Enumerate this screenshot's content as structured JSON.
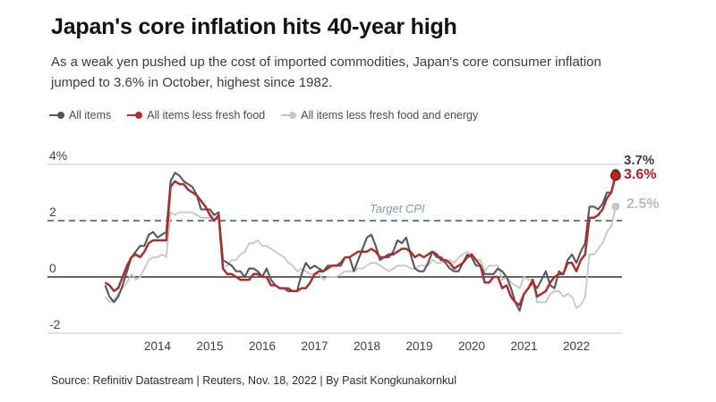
{
  "header": {
    "title": "Japan's core inflation hits 40-year high",
    "subtitle": "As a weak yen pushed up the cost of imported commodities, Japan's core consumer inflation jumped to 3.6% in October, highest since 1982."
  },
  "legend": {
    "items": [
      {
        "label": "All items",
        "color": "#55575c"
      },
      {
        "label": "All items less fresh food",
        "color": "#a8302e"
      },
      {
        "label": "All items less fresh food and energy",
        "color": "#c5c6c8"
      }
    ]
  },
  "chart_data": {
    "type": "line",
    "title": "Japan's core inflation hits 40-year high",
    "xlabel": "",
    "ylabel": "percent",
    "x_start": "2013-01",
    "x_end": "2022-10",
    "x_ticks": [
      2014,
      2015,
      2016,
      2017,
      2018,
      2019,
      2020,
      2021,
      2022
    ],
    "y_ticks": [
      {
        "label": "4%",
        "value": 4
      },
      {
        "label": "2",
        "value": 2
      },
      {
        "label": "0",
        "value": 0
      },
      {
        "label": "-2",
        "value": -2
      }
    ],
    "ylim": [
      -2.8,
      4.4
    ],
    "grid": "horizontal",
    "legend_position": "top",
    "target_line": {
      "label": "Target CPI",
      "value": 2,
      "color": "#5d828e"
    },
    "zero_line_color": "#2e3136",
    "grid_color": "#d9d9d9",
    "series": [
      {
        "name": "All items",
        "color": "#55575c",
        "end_label": "3.7%",
        "end_label_color": "#3b3e43",
        "end_value": 3.7,
        "values": [
          -0.3,
          -0.7,
          -0.9,
          -0.7,
          -0.3,
          0.2,
          0.7,
          0.9,
          1.1,
          1.1,
          1.5,
          1.6,
          1.4,
          1.5,
          1.6,
          3.4,
          3.7,
          3.6,
          3.4,
          3.3,
          3.2,
          2.9,
          2.4,
          2.4,
          2.4,
          2.2,
          2.3,
          0.6,
          0.5,
          0.4,
          0.2,
          0.2,
          0.0,
          0.3,
          0.3,
          0.2,
          0.0,
          0.3,
          -0.1,
          -0.3,
          -0.4,
          -0.4,
          -0.4,
          -0.5,
          -0.5,
          0.1,
          0.5,
          0.3,
          0.4,
          0.3,
          0.2,
          0.4,
          0.4,
          0.4,
          0.4,
          0.7,
          0.7,
          0.2,
          0.6,
          1.0,
          1.4,
          1.5,
          1.1,
          0.6,
          0.7,
          0.7,
          0.9,
          1.3,
          1.2,
          1.4,
          0.8,
          0.3,
          0.2,
          0.2,
          0.5,
          0.9,
          0.7,
          0.7,
          0.5,
          0.3,
          0.2,
          0.2,
          0.5,
          0.8,
          0.7,
          0.4,
          0.4,
          0.1,
          0.1,
          0.1,
          0.3,
          0.2,
          0.0,
          -0.4,
          -0.9,
          -1.2,
          -0.6,
          -0.4,
          -0.2,
          -0.4,
          -0.1,
          0.2,
          -0.3,
          -0.4,
          0.2,
          0.1,
          0.6,
          0.8,
          0.5,
          0.9,
          1.2,
          2.5,
          2.5,
          2.4,
          2.6,
          3.0,
          3.0,
          3.7
        ]
      },
      {
        "name": "All items less fresh food",
        "color": "#a8302e",
        "end_label": "3.6%",
        "end_label_color": "#b01f24",
        "end_value": 3.6,
        "values": [
          -0.2,
          -0.3,
          -0.5,
          -0.4,
          0.0,
          0.4,
          0.7,
          0.8,
          0.7,
          0.9,
          1.2,
          1.3,
          1.3,
          1.3,
          1.3,
          3.2,
          3.4,
          3.3,
          3.3,
          3.1,
          3.0,
          2.9,
          2.7,
          2.5,
          2.2,
          2.0,
          2.2,
          0.3,
          0.1,
          0.1,
          0.0,
          -0.1,
          -0.1,
          -0.1,
          0.1,
          0.1,
          0.0,
          0.0,
          -0.3,
          -0.3,
          -0.4,
          -0.4,
          -0.5,
          -0.5,
          -0.5,
          -0.4,
          -0.4,
          -0.2,
          0.1,
          0.2,
          0.2,
          0.3,
          0.4,
          0.4,
          0.5,
          0.7,
          0.7,
          0.8,
          0.9,
          0.9,
          0.9,
          1.0,
          0.9,
          0.7,
          0.7,
          0.8,
          0.8,
          0.9,
          1.0,
          1.0,
          0.9,
          0.7,
          0.8,
          0.7,
          0.8,
          0.9,
          0.8,
          0.6,
          0.6,
          0.5,
          0.3,
          0.4,
          0.5,
          0.7,
          0.8,
          0.6,
          0.4,
          -0.2,
          -0.2,
          0.0,
          0.0,
          -0.4,
          -0.3,
          -0.7,
          -0.9,
          -1.0,
          -0.6,
          -0.4,
          -0.1,
          -0.7,
          -0.6,
          -0.5,
          -0.2,
          0.0,
          0.1,
          0.1,
          0.5,
          0.5,
          0.2,
          0.6,
          0.8,
          2.1,
          2.1,
          2.2,
          2.4,
          2.8,
          3.0,
          3.6
        ]
      },
      {
        "name": "All items less fresh food and energy",
        "color": "#c5c6c8",
        "end_label": "2.5%",
        "end_label_color": "#b9babc",
        "end_value": 2.5,
        "values": [
          -0.7,
          -0.9,
          -0.8,
          -0.6,
          -0.4,
          -0.2,
          0.1,
          -0.1,
          0.0,
          0.3,
          0.6,
          0.7,
          0.7,
          0.8,
          0.7,
          2.3,
          2.2,
          2.3,
          2.3,
          2.3,
          2.3,
          2.2,
          2.1,
          2.1,
          2.1,
          2.0,
          2.1,
          0.4,
          0.4,
          0.6,
          0.6,
          0.8,
          0.9,
          1.2,
          1.2,
          1.3,
          1.1,
          1.1,
          1.0,
          0.9,
          0.8,
          0.7,
          0.5,
          0.4,
          0.2,
          0.3,
          0.2,
          0.1,
          0.1,
          0.1,
          -0.1,
          0.0,
          0.0,
          0.0,
          0.1,
          0.2,
          0.2,
          0.2,
          0.3,
          0.3,
          0.4,
          0.5,
          0.5,
          0.4,
          0.3,
          0.2,
          0.3,
          0.4,
          0.4,
          0.4,
          0.3,
          0.3,
          0.4,
          0.4,
          0.4,
          0.6,
          0.5,
          0.5,
          0.6,
          0.6,
          0.5,
          0.7,
          0.8,
          0.9,
          0.8,
          0.6,
          0.6,
          0.2,
          0.4,
          0.4,
          0.4,
          -0.1,
          0.0,
          -0.2,
          -0.3,
          -0.4,
          0.0,
          -0.1,
          -0.1,
          -0.9,
          -0.9,
          -0.9,
          -0.6,
          -0.5,
          -0.5,
          -0.7,
          -0.6,
          -0.7,
          -1.1,
          -1.0,
          -0.7,
          0.8,
          0.8,
          1.0,
          1.2,
          1.6,
          1.8,
          2.5
        ]
      }
    ]
  },
  "footer": {
    "source": "Source: Refinitiv Datastream | Reuters, Nov. 18, 2022 | By Pasit Kongkunakornkul"
  }
}
